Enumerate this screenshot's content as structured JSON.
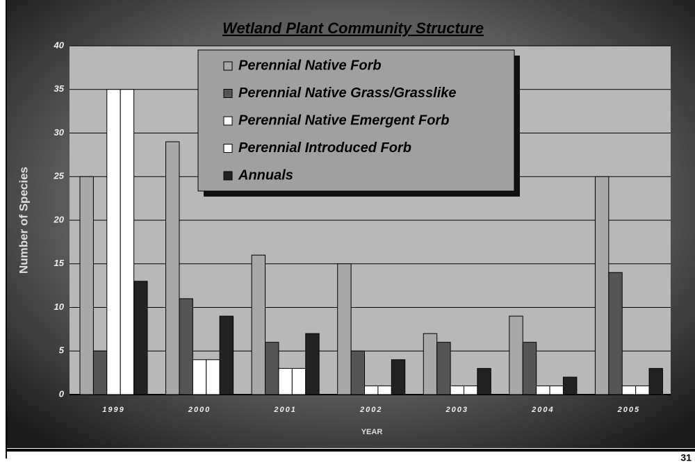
{
  "chart_data": {
    "type": "bar",
    "title": "Wetland Plant Community Structure",
    "x_label": "YEAR",
    "y_label": "Number of Species",
    "categories": [
      "1999",
      "2000",
      "2001",
      "2002",
      "2003",
      "2004",
      "2005"
    ],
    "series": [
      {
        "name": "Perennial Native Forb",
        "color": "#a8a8a8",
        "values": [
          25,
          29,
          16,
          15,
          7,
          9,
          25
        ]
      },
      {
        "name": "Perennial Native Grass/Grasslike",
        "color": "#555555",
        "values": [
          5,
          11,
          6,
          5,
          6,
          6,
          14
        ]
      },
      {
        "name": "Perennial Native Emergent Forb",
        "color": "#ffffff",
        "values": [
          35,
          4,
          3,
          1,
          1,
          1,
          1
        ]
      },
      {
        "name": "Perennial Introduced Forb",
        "color": "#ffffff",
        "values": [
          35,
          4,
          3,
          1,
          1,
          1,
          1
        ]
      },
      {
        "name": "Annuals",
        "color": "#222222",
        "values": [
          13,
          9,
          7,
          4,
          3,
          2,
          3
        ]
      }
    ],
    "ylim": [
      0,
      40
    ],
    "yticks": [
      0,
      5,
      10,
      15,
      20,
      25,
      30,
      35,
      40
    ],
    "grid": true
  },
  "page_number": "31"
}
